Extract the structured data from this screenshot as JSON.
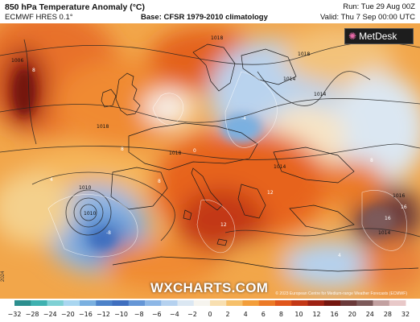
{
  "header": {
    "title": "850 hPa Temperature Anomaly (°C)",
    "model": "ECMWF HRES 0.1°",
    "base": "Base: CFSR 1979-2010 climatology",
    "run": "Run: Tue 29 Aug 00Z",
    "valid": "Valid: Thu 7 Sep 00:00 UTC"
  },
  "logo": {
    "text": "MetDesk",
    "icon": "metdesk-pinwheel-icon"
  },
  "watermark": "WXCHARTS.COM",
  "copyright": "© 2023 European Centre for Medium-range Weather Forecasts (ECMWF)",
  "side_label": "2024",
  "map": {
    "variable": "850 hPa temperature anomaly",
    "units": "°C",
    "isobar_labels": [
      "1018",
      "1018",
      "1018",
      "1010",
      "1010",
      "1006",
      "1014",
      "1014",
      "1014",
      "1018",
      "1014",
      "1016"
    ],
    "contour_labels": [
      "8",
      "8",
      "8",
      "4",
      "0",
      "-4",
      "-8",
      "16",
      "12",
      "16",
      "12",
      "8",
      "4"
    ]
  },
  "legend": {
    "ticks": [
      "−32",
      "−28",
      "−24",
      "−20",
      "−16",
      "−12",
      "−10",
      "−8",
      "−6",
      "−4",
      "−2",
      "0",
      "2",
      "4",
      "6",
      "8",
      "10",
      "12",
      "16",
      "20",
      "24",
      "28",
      "32"
    ],
    "colors": [
      "#2d8f8f",
      "#3fb1b0",
      "#7fd0d4",
      "#a9d6f0",
      "#7ab0e0",
      "#4c82c9",
      "#3f6fbf",
      "#6596d6",
      "#8db7e6",
      "#b5d1ef",
      "#dbe7f2",
      "#f6f4ee",
      "#f8dfb0",
      "#f6c06a",
      "#f39e3a",
      "#ec7a26",
      "#e0561b",
      "#c33816",
      "#9e2213",
      "#74160f",
      "#6b3a3a",
      "#7d5a5a",
      "#c2a0a0",
      "#e8c8c8"
    ]
  }
}
